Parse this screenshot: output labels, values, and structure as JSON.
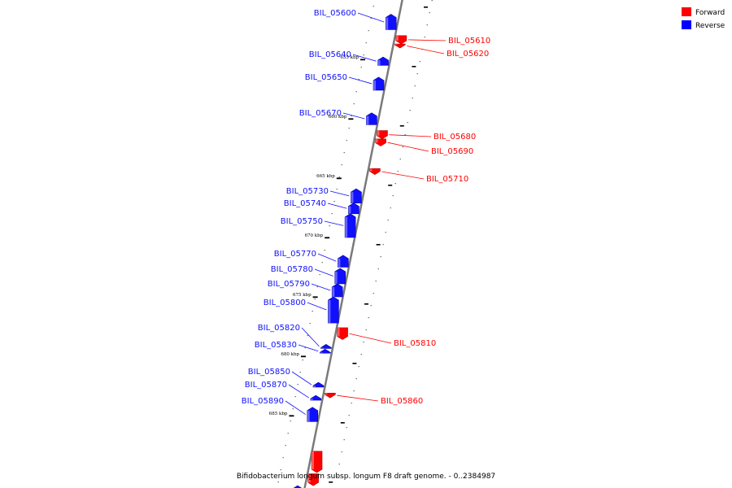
{
  "caption": "Bifidobacterium longum subsp. longum F8 draft genome. - 0..2384987",
  "legend": [
    {
      "label": "Forward",
      "color": "#ff0000"
    },
    {
      "label": "Reverse",
      "color": "#0000ff"
    }
  ],
  "colors": {
    "forward": "#ff0000",
    "reverse": "#1010ff",
    "axis": "#7a7a7a"
  },
  "ticks": [
    {
      "kbp": 655,
      "label": "655 kbp"
    },
    {
      "kbp": 660,
      "label": "660 kbp"
    },
    {
      "kbp": 665,
      "label": "665 kbp"
    },
    {
      "kbp": 670,
      "label": "670 kbp"
    },
    {
      "kbp": 675,
      "label": "675 kbp"
    },
    {
      "kbp": 680,
      "label": "680 kbp"
    },
    {
      "kbp": 685,
      "label": "685 kbp"
    }
  ],
  "genes": [
    {
      "name": "BIL_05600",
      "strand": "reverse",
      "start_kbp": 651.2,
      "end_kbp": 652.5
    },
    {
      "name": "BIL_05610",
      "strand": "forward",
      "start_kbp": 653.0,
      "end_kbp": 653.7
    },
    {
      "name": "BIL_05620",
      "strand": "forward",
      "start_kbp": 653.7,
      "end_kbp": 654.0
    },
    {
      "name": "BIL_05640",
      "strand": "reverse",
      "start_kbp": 654.8,
      "end_kbp": 655.5
    },
    {
      "name": "BIL_05650",
      "strand": "reverse",
      "start_kbp": 656.5,
      "end_kbp": 657.6
    },
    {
      "name": "BIL_05670",
      "strand": "reverse",
      "start_kbp": 659.5,
      "end_kbp": 660.5
    },
    {
      "name": "BIL_05680",
      "strand": "forward",
      "start_kbp": 661.0,
      "end_kbp": 661.7
    },
    {
      "name": "BIL_05690",
      "strand": "forward",
      "start_kbp": 661.7,
      "end_kbp": 662.3
    },
    {
      "name": "BIL_05710",
      "strand": "forward",
      "start_kbp": 664.2,
      "end_kbp": 664.7
    },
    {
      "name": "BIL_05730",
      "strand": "reverse",
      "start_kbp": 665.9,
      "end_kbp": 667.1
    },
    {
      "name": "BIL_05740",
      "strand": "reverse",
      "start_kbp": 667.1,
      "end_kbp": 668.0
    },
    {
      "name": "BIL_05750",
      "strand": "reverse",
      "start_kbp": 668.0,
      "end_kbp": 670.0
    },
    {
      "name": "BIL_05770",
      "strand": "reverse",
      "start_kbp": 671.5,
      "end_kbp": 672.5
    },
    {
      "name": "BIL_05780",
      "strand": "reverse",
      "start_kbp": 672.6,
      "end_kbp": 673.9
    },
    {
      "name": "BIL_05790",
      "strand": "reverse",
      "start_kbp": 673.9,
      "end_kbp": 675.0
    },
    {
      "name": "BIL_05800",
      "strand": "reverse",
      "start_kbp": 675.0,
      "end_kbp": 677.2
    },
    {
      "name": "BIL_05810",
      "strand": "forward",
      "start_kbp": 677.6,
      "end_kbp": 678.6
    },
    {
      "name": "BIL_05820",
      "strand": "reverse",
      "start_kbp": 679.0,
      "end_kbp": 679.3
    },
    {
      "name": "BIL_05830",
      "strand": "reverse",
      "start_kbp": 679.4,
      "end_kbp": 679.7
    },
    {
      "name": "BIL_05850",
      "strand": "reverse",
      "start_kbp": 682.2,
      "end_kbp": 682.6
    },
    {
      "name": "BIL_05860",
      "strand": "forward",
      "start_kbp": 683.1,
      "end_kbp": 683.5
    },
    {
      "name": "BIL_05870",
      "strand": "reverse",
      "start_kbp": 683.3,
      "end_kbp": 683.7
    },
    {
      "name": "BIL_05890",
      "strand": "reverse",
      "start_kbp": 684.3,
      "end_kbp": 685.5
    },
    {
      "name": "",
      "strand": "forward",
      "start_kbp": 688.0,
      "end_kbp": 689.8
    },
    {
      "name": "",
      "strand": "forward",
      "start_kbp": 689.9,
      "end_kbp": 690.9
    },
    {
      "name": "",
      "strand": "reverse",
      "start_kbp": 690.9,
      "end_kbp": 691.4
    }
  ]
}
